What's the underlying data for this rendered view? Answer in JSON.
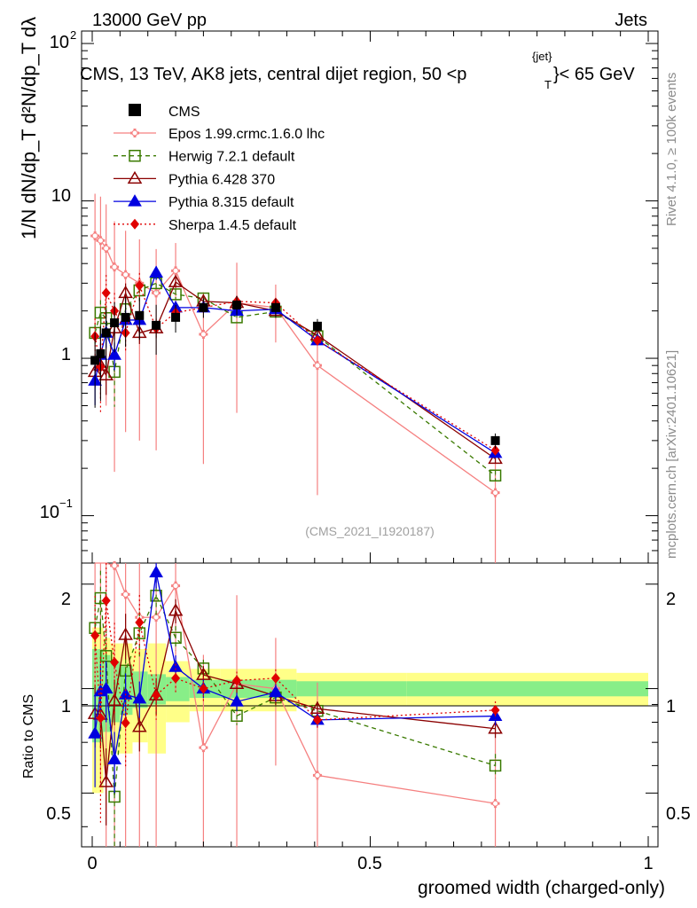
{
  "header": {
    "left": "13000 GeV pp",
    "right": "Jets"
  },
  "title": {
    "main": "CMS, 13 TeV, AK8 jets, central dijet region, 50 <p",
    "sub": "T",
    "sup": "{jet}",
    "tail": "}< 65 GeV"
  },
  "side_labels": {
    "rivet": "Rivet 4.1.0, ≥ 100k events",
    "mcplots": "mcplots.cern.ch [arXiv:2401.10621]"
  },
  "watermark": "(CMS_2021_I1920187)",
  "axes": {
    "ylabel_top": "1/N dN/dp_T d²N/dp_T dλ",
    "ylabel_bottom": "Ratio to CMS",
    "xlabel": "groomed width (charged-only)",
    "xticks": [
      "0",
      "0.5",
      "1"
    ],
    "yticks_top": [
      "10",
      "1",
      "10"
    ],
    "ytick_top_exp": [
      "2",
      "",
      "−1"
    ],
    "yticks_bottom": [
      "2",
      "1",
      "0.5",
      "2",
      "1",
      "0.5"
    ]
  },
  "chart_data": {
    "type": "line",
    "xlim": [
      0,
      1
    ],
    "ylim_top": [
      0.05,
      120
    ],
    "ylim_bottom": [
      0.35,
      2.3
    ],
    "x": [
      0.005,
      0.015,
      0.025,
      0.04,
      0.06,
      0.085,
      0.115,
      0.15,
      0.2,
      0.26,
      0.33,
      0.405,
      0.725
    ],
    "data": {
      "name": "CMS",
      "values": [
        0.97,
        1.07,
        1.45,
        1.68,
        1.82,
        1.87,
        1.62,
        1.82,
        2.1,
        2.18,
        2.1,
        1.6,
        0.3
      ],
      "band_stat": [
        0.3,
        0.3,
        0.25,
        0.2,
        0.16,
        0.12,
        0.1,
        0.08,
        0.06,
        0.06,
        0.06,
        0.05,
        0.05
      ],
      "band_total": [
        0.5,
        0.5,
        0.4,
        0.35,
        0.35,
        0.3,
        0.35,
        0.2,
        0.14,
        0.14,
        0.14,
        0.11,
        0.11
      ]
    },
    "series": [
      {
        "name": "Epos 1.99.crmc.1.6.0 lhc",
        "color": "#f58080",
        "values": [
          6.0,
          5.6,
          5.0,
          3.8,
          3.4,
          3.0,
          2.6,
          3.6,
          1.42,
          2.25,
          2.1,
          0.9,
          0.14
        ],
        "err": [
          0.85,
          0.9,
          0.9,
          0.95,
          0.9,
          0.9,
          0.9,
          0.5,
          0.85,
          0.8,
          0.4,
          0.85,
          0.9
        ]
      },
      {
        "name": "Herwig 7.2.1 default",
        "color": "#3a7a00",
        "values": [
          1.45,
          1.95,
          1.8,
          0.82,
          2.05,
          2.7,
          3.0,
          2.55,
          2.4,
          1.82,
          1.98,
          1.38,
          0.18
        ],
        "err": [
          0.15,
          0.2,
          0.2,
          0.4,
          0.2,
          0.15,
          0.12,
          0.08,
          0.06,
          0.06,
          0.06,
          0.05,
          0.08
        ]
      },
      {
        "name": "Pythia 6.428 370",
        "color": "#8b0000",
        "values": [
          0.82,
          0.9,
          0.78,
          1.55,
          2.6,
          1.45,
          1.55,
          3.05,
          2.3,
          2.25,
          2.0,
          1.4,
          0.23
        ],
        "err": [
          0.2,
          0.2,
          0.25,
          0.15,
          0.15,
          0.15,
          0.12,
          0.08,
          0.06,
          0.06,
          0.06,
          0.05,
          0.06
        ]
      },
      {
        "name": "Pythia 8.315 default",
        "color": "#0000e0",
        "values": [
          0.72,
          1.05,
          1.45,
          1.05,
          1.75,
          1.75,
          3.5,
          2.1,
          2.1,
          2.0,
          2.05,
          1.3,
          0.25
        ],
        "err": [
          0.3,
          0.2,
          0.2,
          0.2,
          0.15,
          0.12,
          0.1,
          0.08,
          0.06,
          0.06,
          0.06,
          0.05,
          0.06
        ]
      },
      {
        "name": "Sherpa 1.4.5 default",
        "color": "#e00000",
        "values": [
          1.38,
          0.88,
          2.6,
          2.0,
          1.45,
          2.9,
          1.55,
          1.95,
          2.1,
          2.3,
          2.25,
          1.3,
          0.26
        ],
        "err": [
          0.3,
          0.5,
          0.3,
          0.3,
          0.25,
          0.2,
          0.15,
          0.1,
          0.08,
          0.06,
          0.06,
          0.05,
          0.06
        ]
      }
    ]
  }
}
